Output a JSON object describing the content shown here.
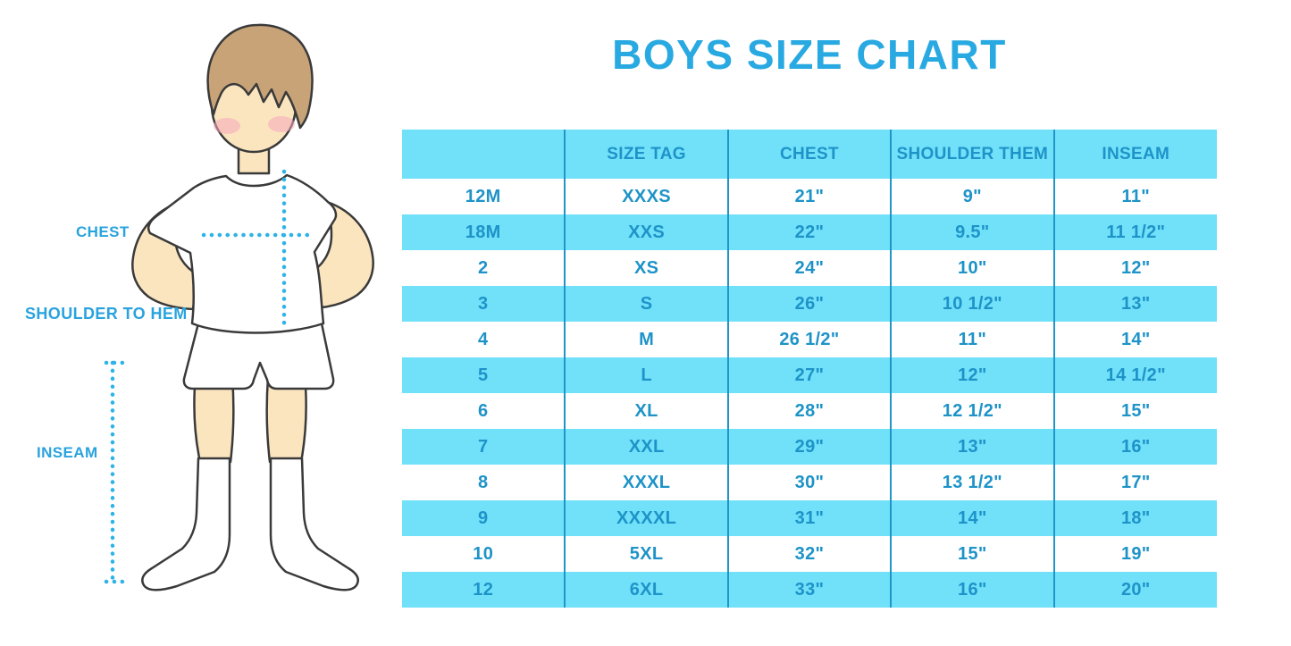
{
  "title": "BOYS SIZE CHART",
  "figure": {
    "chest_label": "CHEST",
    "shoulder_to_hem_label": "SHOULDER TO HEM",
    "inseam_label": "INSEAM"
  },
  "chart_data": {
    "type": "table",
    "title": "BOYS SIZE CHART",
    "columns": [
      "",
      "SIZE TAG",
      "CHEST",
      "SHOULDER THEM",
      "INSEAM"
    ],
    "rows": [
      [
        "12M",
        "XXXS",
        "21\"",
        "9\"",
        "11\""
      ],
      [
        "18M",
        "XXS",
        "22\"",
        "9.5\"",
        "11 1/2\""
      ],
      [
        "2",
        "XS",
        "24\"",
        "10\"",
        "12\""
      ],
      [
        "3",
        "S",
        "26\"",
        "10 1/2\"",
        "13\""
      ],
      [
        "4",
        "M",
        "26 1/2\"",
        "11\"",
        "14\""
      ],
      [
        "5",
        "L",
        "27\"",
        "12\"",
        "14 1/2\""
      ],
      [
        "6",
        "XL",
        "28\"",
        "12 1/2\"",
        "15\""
      ],
      [
        "7",
        "XXL",
        "29\"",
        "13\"",
        "16\""
      ],
      [
        "8",
        "XXXL",
        "30\"",
        "13 1/2\"",
        "17\""
      ],
      [
        "9",
        "XXXXL",
        "31\"",
        "14\"",
        "18\""
      ],
      [
        "10",
        "5XL",
        "32\"",
        "15\"",
        "19\""
      ],
      [
        "12",
        "6XL",
        "33\"",
        "16\"",
        "20\""
      ]
    ],
    "layout": {
      "alternating_row_fill": "every second data row cyan, starting with row 18M",
      "grid": "vertical column dividers only"
    }
  },
  "colors": {
    "title_blue": "#29A9E1",
    "table_text_blue": "#1E93C8",
    "row_cyan": "#71E1FA",
    "column_divider": "#2095C8",
    "dotted_measure_line": "#2EB3E8",
    "label_blue": "#29A3DE",
    "skin": "#FBE5BF",
    "hair": "#C8A378",
    "outline": "#3A3A3A"
  }
}
